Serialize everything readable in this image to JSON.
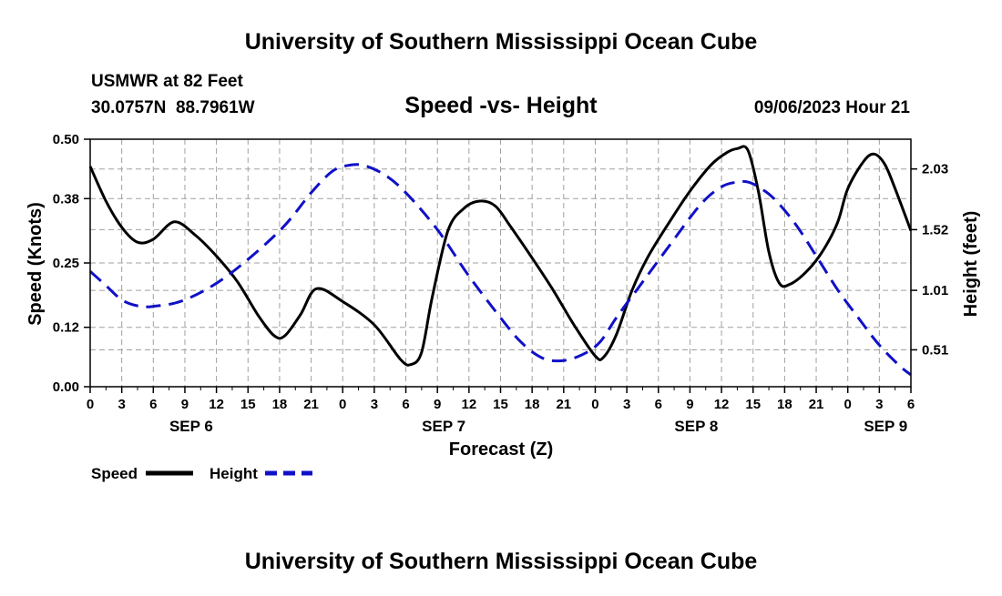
{
  "header": {
    "title": "University of Southern Mississippi Ocean Cube",
    "station": "USMWR at 82 Feet",
    "coords": "30.0757N  88.7961W",
    "subtitle": "Speed -vs- Height",
    "timestamp": "09/06/2023 Hour 21"
  },
  "footer": {
    "title": "University of Southern Mississippi Ocean Cube"
  },
  "legend": {
    "speed_label": "Speed",
    "height_label": "Height"
  },
  "colors": {
    "speed": "#000000",
    "height": "#1010c8",
    "grid": "#a0a0a0"
  },
  "chart_data": {
    "type": "line",
    "title": "Speed -vs- Height",
    "xlabel": "Forecast (Z)",
    "ylabel": "Speed (Knots)",
    "y2label": "Height (feet)",
    "xlim": [
      0,
      78
    ],
    "ylim": [
      0,
      0.5
    ],
    "y2lim": [
      0.2,
      2.28
    ],
    "x_tick_labels": [
      "0",
      "3",
      "6",
      "9",
      "12",
      "15",
      "18",
      "21",
      "0",
      "3",
      "6",
      "9",
      "12",
      "15",
      "18",
      "21",
      "0",
      "3",
      "6",
      "9",
      "12",
      "15",
      "18",
      "21",
      "0",
      "3",
      "6"
    ],
    "x_tick_hours": [
      0,
      3,
      6,
      9,
      12,
      15,
      18,
      21,
      24,
      27,
      30,
      33,
      36,
      39,
      42,
      45,
      48,
      51,
      54,
      57,
      60,
      63,
      66,
      69,
      72,
      75,
      78
    ],
    "day_labels": [
      {
        "label": "SEP 6",
        "hour": 9.6
      },
      {
        "label": "SEP 7",
        "hour": 33.6
      },
      {
        "label": "SEP 8",
        "hour": 57.6
      },
      {
        "label": "SEP 9",
        "hour": 75.6
      }
    ],
    "y_ticks": [
      0.0,
      0.12,
      0.25,
      0.38,
      0.5
    ],
    "y_tick_labels": [
      "0.00",
      "0.12",
      "0.25",
      "0.38",
      "0.50"
    ],
    "y2_ticks": [
      0.51,
      1.01,
      1.52,
      2.03
    ],
    "y2_tick_labels": [
      "0.51",
      "1.01",
      "1.52",
      "2.03"
    ],
    "series": [
      {
        "name": "Speed",
        "axis": "left",
        "style": "solid",
        "x": [
          0,
          1.5,
          3,
          4.5,
          6,
          8,
          10,
          12,
          14,
          16,
          17.5,
          18.5,
          20,
          21.5,
          24,
          27,
          29.5,
          30.5,
          31.5,
          32.5,
          34,
          35.5,
          37,
          38.5,
          40,
          42,
          44,
          46,
          48,
          48.8,
          50,
          51.5,
          53,
          55,
          57,
          59,
          60.5,
          61.5,
          62.5,
          63.5,
          64.5,
          65.5,
          66.5,
          68,
          69.5,
          71,
          72,
          73.5,
          74.5,
          75.5,
          76.5,
          78
        ],
        "values": [
          0.445,
          0.375,
          0.322,
          0.292,
          0.298,
          0.333,
          0.306,
          0.264,
          0.212,
          0.143,
          0.103,
          0.103,
          0.146,
          0.198,
          0.172,
          0.125,
          0.055,
          0.045,
          0.07,
          0.18,
          0.315,
          0.36,
          0.375,
          0.365,
          0.322,
          0.26,
          0.195,
          0.124,
          0.062,
          0.06,
          0.105,
          0.195,
          0.262,
          0.331,
          0.395,
          0.448,
          0.473,
          0.481,
          0.478,
          0.395,
          0.272,
          0.209,
          0.207,
          0.231,
          0.27,
          0.33,
          0.4,
          0.455,
          0.47,
          0.45,
          0.4,
          0.315
        ]
      },
      {
        "name": "Height",
        "axis": "right",
        "style": "dashed",
        "x": [
          0,
          1.5,
          3,
          4.5,
          6,
          9,
          13,
          18,
          21,
          23,
          24.5,
          26,
          28,
          30,
          33,
          36,
          39,
          41,
          43,
          45,
          47,
          48.5,
          50,
          52,
          55,
          58,
          60,
          61.5,
          62.5,
          63.5,
          65,
          67,
          69,
          71,
          73,
          75,
          77,
          78
        ],
        "values": [
          1.17,
          1.05,
          0.93,
          0.88,
          0.875,
          0.93,
          1.13,
          1.51,
          1.83,
          2.01,
          2.06,
          2.06,
          1.98,
          1.83,
          1.52,
          1.13,
          0.78,
          0.57,
          0.44,
          0.42,
          0.48,
          0.58,
          0.78,
          1.02,
          1.38,
          1.73,
          1.88,
          1.92,
          1.92,
          1.88,
          1.78,
          1.57,
          1.3,
          1.02,
          0.78,
          0.55,
          0.37,
          0.3
        ]
      }
    ]
  }
}
